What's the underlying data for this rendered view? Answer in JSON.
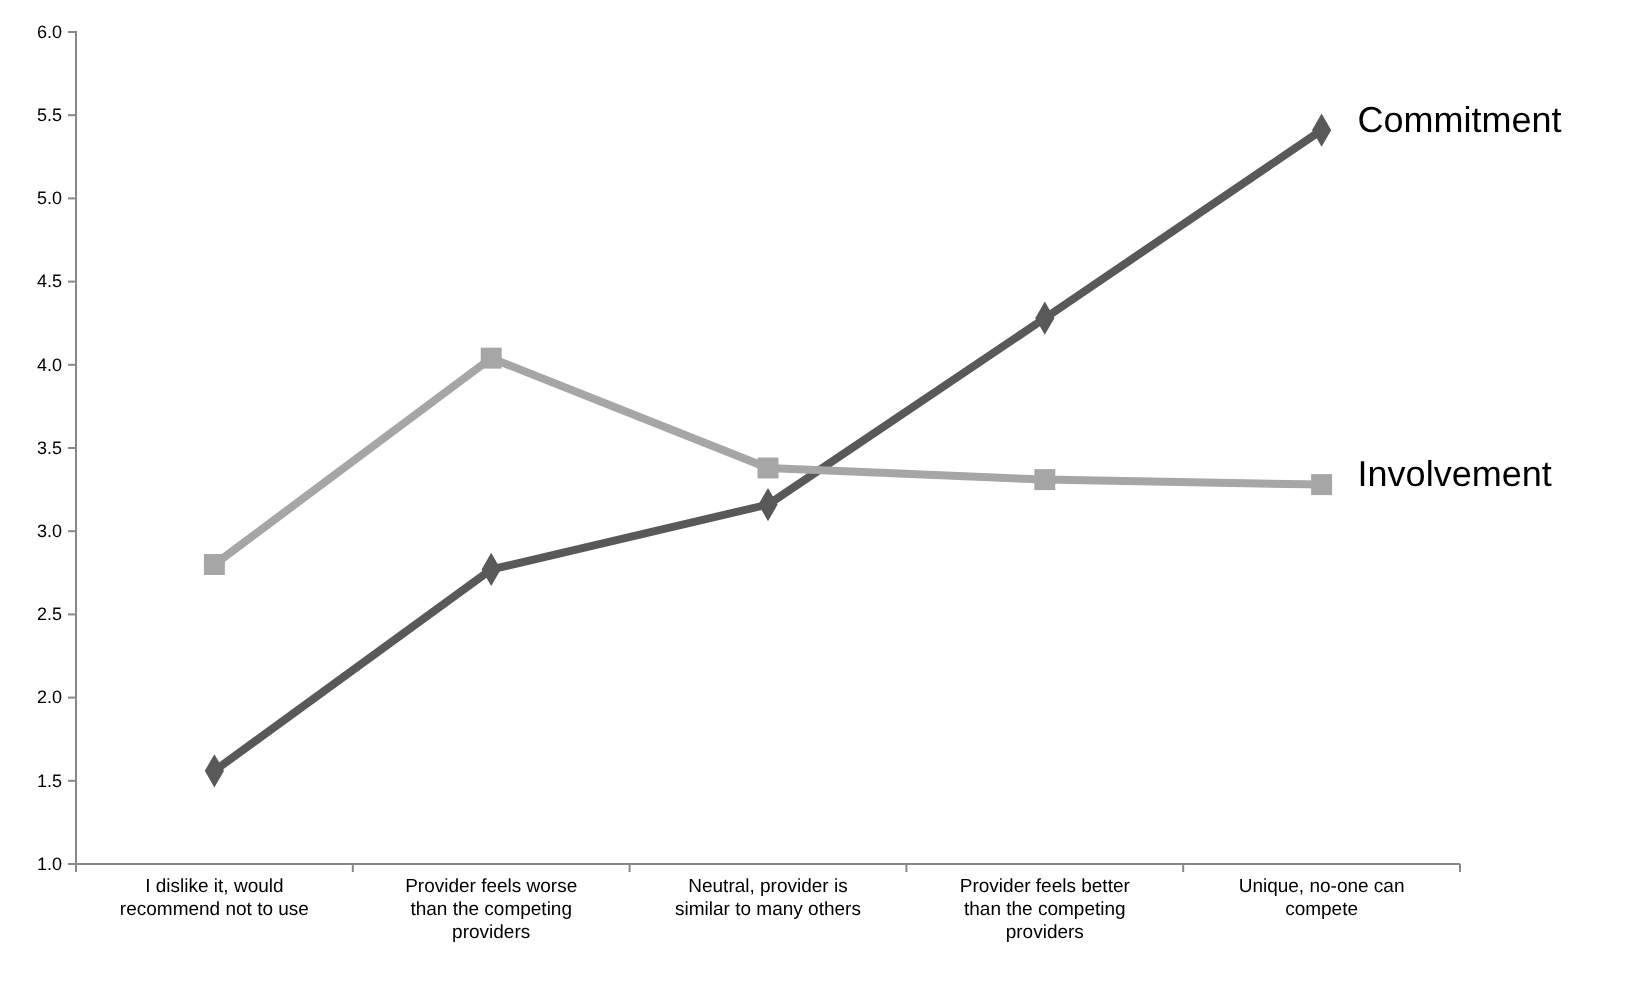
{
  "chart_data": {
    "type": "line",
    "categories": [
      "I dislike it, would recommend not to use",
      "Provider feels worse than the competing providers",
      "Neutral, provider is similar to many others",
      "Provider feels better than the competing providers",
      "Unique, no-one can compete"
    ],
    "series": [
      {
        "name": "Commitment",
        "color": "#595959",
        "marker": "diamond",
        "values": [
          1.56,
          2.77,
          3.16,
          4.28,
          5.41
        ]
      },
      {
        "name": "Involvement",
        "color": "#a6a6a6",
        "marker": "square",
        "values": [
          2.8,
          4.04,
          3.38,
          3.31,
          3.28
        ]
      }
    ],
    "ylim": [
      1.0,
      6.0
    ],
    "yticks": [
      {
        "value": 1.0,
        "label": "1.0"
      },
      {
        "value": 1.5,
        "label": "1.5"
      },
      {
        "value": 2.0,
        "label": "2.0"
      },
      {
        "value": 2.5,
        "label": "2.5"
      },
      {
        "value": 3.0,
        "label": "3.0"
      },
      {
        "value": 3.5,
        "label": "3.5"
      },
      {
        "value": 4.0,
        "label": "4.0"
      },
      {
        "value": 4.5,
        "label": "4.5"
      },
      {
        "value": 5.0,
        "label": "5.0"
      },
      {
        "value": 5.5,
        "label": "5.5"
      },
      {
        "value": 6.0,
        "label": "6.0"
      }
    ],
    "grid": false,
    "line_style": "solid"
  }
}
